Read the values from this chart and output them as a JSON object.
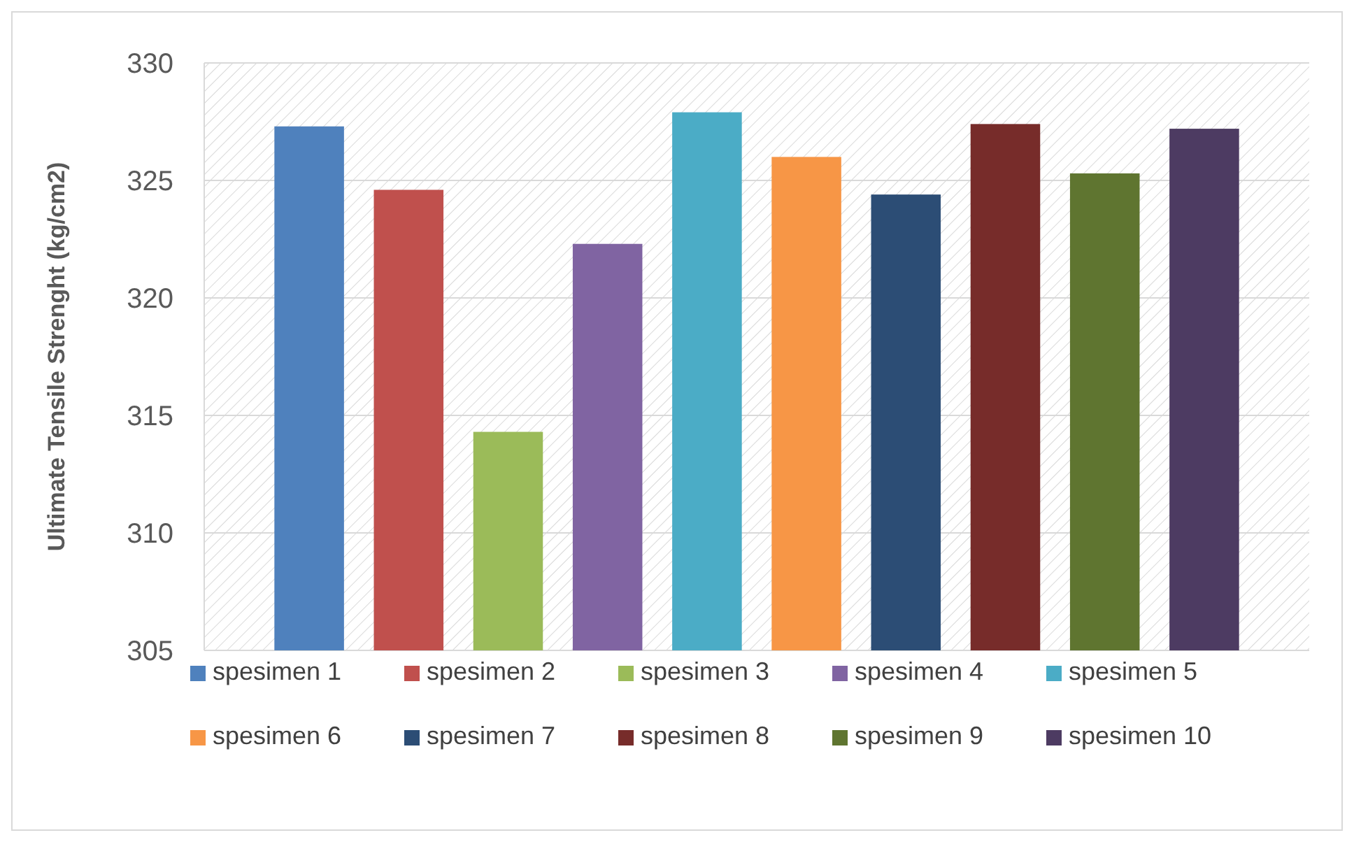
{
  "chart_data": {
    "type": "bar",
    "ylabel": "Ultimate Tensile Strenght (kg/cm2)",
    "categories": [
      null
    ],
    "series": [
      {
        "name": "spesimen 1",
        "color": "#4f81bd",
        "values": [
          327.3
        ]
      },
      {
        "name": "spesimen 2",
        "color": "#c0504d",
        "values": [
          324.6
        ]
      },
      {
        "name": "spesimen 3",
        "color": "#9bbb59",
        "values": [
          314.3
        ]
      },
      {
        "name": "spesimen 4",
        "color": "#8064a2",
        "values": [
          322.3
        ]
      },
      {
        "name": "spesimen 5",
        "color": "#4bacc6",
        "values": [
          327.9
        ]
      },
      {
        "name": "spesimen 6",
        "color": "#f79646",
        "values": [
          326.0
        ]
      },
      {
        "name": "spesimen 7",
        "color": "#2c4d75",
        "values": [
          324.4
        ]
      },
      {
        "name": "spesimen 8",
        "color": "#772c2a",
        "values": [
          327.4
        ]
      },
      {
        "name": "spesimen 9",
        "color": "#5f7530",
        "values": [
          325.3
        ]
      },
      {
        "name": "spesimen 10",
        "color": "#4d3b62",
        "values": [
          327.2
        ]
      }
    ],
    "ylim": [
      305,
      330
    ],
    "yticks": [
      305,
      310,
      315,
      320,
      325,
      330
    ],
    "grid": "y",
    "legend": "bottom"
  }
}
